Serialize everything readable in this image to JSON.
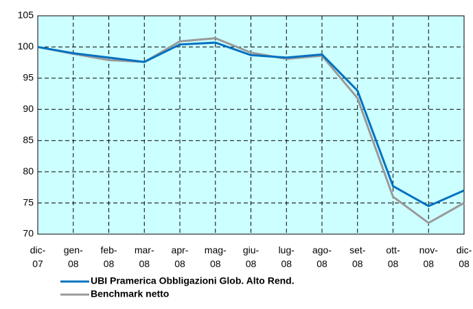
{
  "chart_data": {
    "type": "line",
    "categories": [
      "dic-07",
      "gen-08",
      "feb-08",
      "mar-08",
      "apr-08",
      "mag-08",
      "giu-08",
      "lug-08",
      "ago-08",
      "set-08",
      "ott-08",
      "nov-08",
      "dic-08"
    ],
    "series": [
      {
        "name": "UBI Pramerica Obbligazioni Glob. Alto Rend.",
        "color": "#0070c0",
        "values": [
          100,
          99,
          98.3,
          97.6,
          100.4,
          100.7,
          98.7,
          98.3,
          98.8,
          93,
          77.7,
          74.5,
          77
        ]
      },
      {
        "name": "Benchmark netto",
        "color": "#999999",
        "values": [
          100,
          98.9,
          97.9,
          97.6,
          100.9,
          101.4,
          99.1,
          98.1,
          98.6,
          91.8,
          76,
          71.8,
          75
        ]
      }
    ],
    "ylim": [
      70,
      105
    ],
    "yticks": [
      70,
      75,
      80,
      85,
      90,
      95,
      100,
      105
    ],
    "grid": true,
    "plot_background": "#ccffff"
  }
}
